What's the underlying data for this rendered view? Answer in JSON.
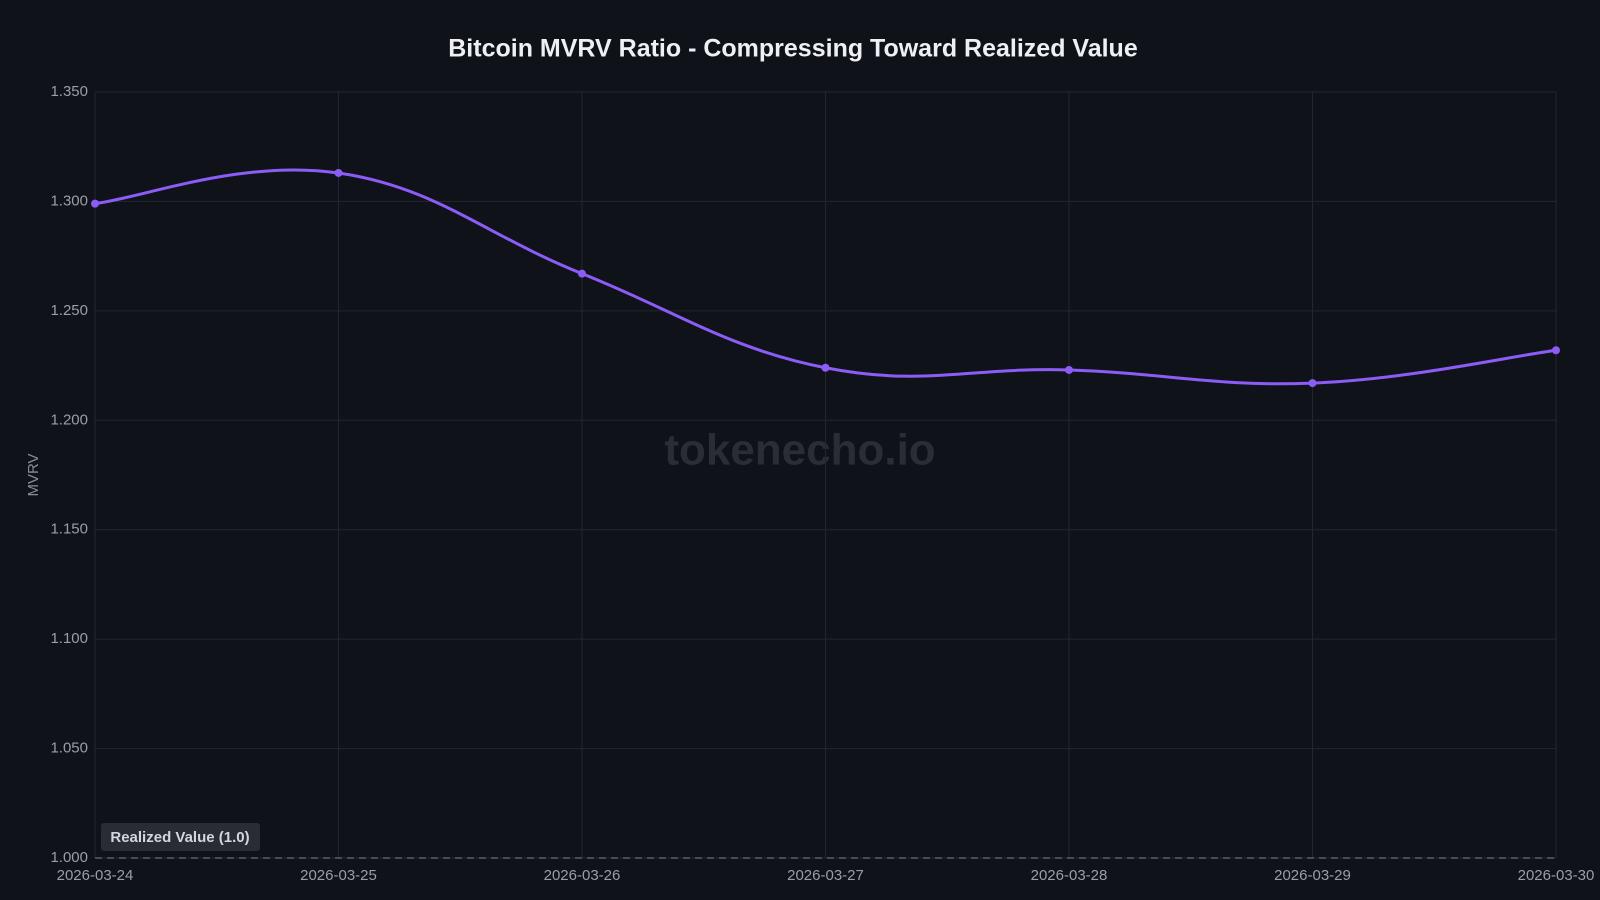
{
  "chart_data": {
    "type": "line",
    "title": "Bitcoin MVRV Ratio - Compressing Toward Realized Value",
    "y_label": "MVRV",
    "watermark": "tokenecho.io",
    "x": [
      "2026-03-24",
      "2026-03-25",
      "2026-03-26",
      "2026-03-27",
      "2026-03-28",
      "2026-03-29",
      "2026-03-30"
    ],
    "series": [
      {
        "name": "MVRV",
        "color": "#8b5cf6",
        "values": [
          1.299,
          1.313,
          1.267,
          1.224,
          1.223,
          1.217,
          1.232
        ]
      }
    ],
    "ylim": [
      1.0,
      1.35
    ],
    "yticks": [
      {
        "value": 1.0,
        "label": "1.000"
      },
      {
        "value": 1.05,
        "label": "1.050"
      },
      {
        "value": 1.1,
        "label": "1.100"
      },
      {
        "value": 1.15,
        "label": "1.150"
      },
      {
        "value": 1.2,
        "label": "1.200"
      },
      {
        "value": 1.25,
        "label": "1.250"
      },
      {
        "value": 1.3,
        "label": "1.300"
      },
      {
        "value": 1.35,
        "label": "1.350"
      }
    ],
    "reference_line": {
      "value": 1,
      "label": "Realized Value (1.0)"
    },
    "grid": true
  }
}
